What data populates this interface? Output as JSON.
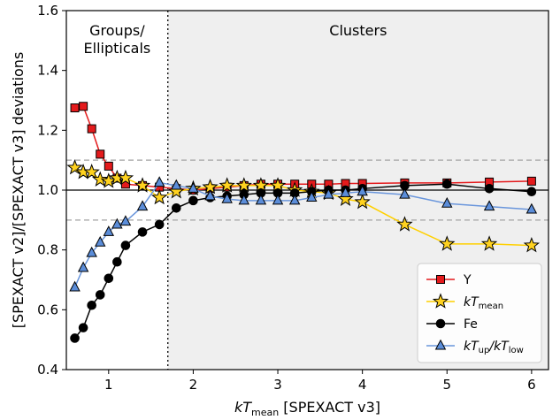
{
  "chart_data": {
    "type": "line",
    "xlabel": "kT_mean [SPEXACT v3]",
    "xlabel_parts": {
      "main": "kT",
      "sub": "mean",
      "rest": " [SPEXACT v3]"
    },
    "ylabel": "[SPEXACT v2]/[SPEXACT v3] deviations",
    "xlim": [
      0.5,
      6.2
    ],
    "ylim": [
      0.4,
      1.6
    ],
    "xticks": [
      1,
      2,
      3,
      4,
      5,
      6
    ],
    "yticks": [
      0.4,
      0.6,
      0.8,
      1.0,
      1.2,
      1.4,
      1.6
    ],
    "ytick_labels": [
      "0.4",
      "0.6",
      "0.8",
      "1.0",
      "1.2",
      "1.4",
      "1.6"
    ],
    "divider_x": 1.7,
    "reference_lines": [
      1.0
    ],
    "dashed_lines": [
      0.9,
      1.1
    ],
    "regions": [
      {
        "lines": [
          "Groups/",
          "Ellipticals"
        ],
        "shaded": false
      },
      {
        "lines": [
          "Clusters"
        ],
        "shaded": true
      }
    ],
    "legend_position": "lower-right",
    "series": [
      {
        "name": "Y",
        "legend": {
          "main": "Y"
        },
        "color": "#e41a1c",
        "fill": "#e41a1c",
        "marker": "square",
        "x": [
          0.6,
          0.7,
          0.8,
          0.9,
          1.0,
          1.1,
          1.2,
          1.4,
          1.6,
          1.8,
          2.0,
          2.2,
          2.4,
          2.6,
          2.8,
          3.0,
          3.2,
          3.4,
          3.6,
          3.8,
          4.0,
          4.5,
          5.0,
          5.5,
          6.0
        ],
        "y": [
          1.275,
          1.28,
          1.205,
          1.12,
          1.08,
          1.04,
          1.02,
          1.015,
          1.01,
          1.005,
          1.0,
          1.005,
          1.01,
          1.015,
          1.02,
          1.02,
          1.02,
          1.02,
          1.02,
          1.022,
          1.022,
          1.024,
          1.024,
          1.027,
          1.03
        ]
      },
      {
        "name": "kT_mean",
        "legend": {
          "main": "kT",
          "sub": "mean"
        },
        "color": "#ffd000",
        "fill": "#ffd21f",
        "marker": "star",
        "x": [
          0.6,
          0.7,
          0.8,
          0.9,
          1.0,
          1.1,
          1.2,
          1.4,
          1.6,
          1.8,
          2.0,
          2.2,
          2.4,
          2.6,
          2.8,
          3.0,
          3.2,
          3.4,
          3.6,
          3.8,
          4.0,
          4.5,
          5.0,
          5.5,
          6.0
        ],
        "y": [
          1.075,
          1.06,
          1.06,
          1.035,
          1.03,
          1.04,
          1.04,
          1.015,
          0.975,
          0.995,
          1.005,
          1.01,
          1.015,
          1.015,
          1.015,
          1.015,
          1.0,
          0.995,
          0.99,
          0.97,
          0.96,
          0.885,
          0.82,
          0.82,
          0.815
        ]
      },
      {
        "name": "Fe",
        "legend": {
          "main": "Fe"
        },
        "color": "#000000",
        "fill": "#000000",
        "marker": "circle",
        "x": [
          0.6,
          0.7,
          0.8,
          0.9,
          1.0,
          1.1,
          1.2,
          1.4,
          1.6,
          1.8,
          2.0,
          2.2,
          2.4,
          2.6,
          2.8,
          3.0,
          3.2,
          3.4,
          3.6,
          3.8,
          4.0,
          4.5,
          5.0,
          5.5,
          6.0
        ],
        "y": [
          0.505,
          0.54,
          0.615,
          0.65,
          0.705,
          0.76,
          0.815,
          0.86,
          0.885,
          0.94,
          0.965,
          0.975,
          0.98,
          0.985,
          0.99,
          0.99,
          0.99,
          0.995,
          1.0,
          1.0,
          1.005,
          1.015,
          1.02,
          1.005,
          0.995
        ]
      },
      {
        "name": "kT_up/kT_low",
        "legend": {
          "main": "kT",
          "sub": "up",
          "main2": "/kT",
          "sub2": "low"
        },
        "color": "#6a96dc",
        "fill": "#5b8dd9",
        "marker": "triangle",
        "x": [
          0.6,
          0.7,
          0.8,
          0.9,
          1.0,
          1.1,
          1.2,
          1.4,
          1.6,
          1.8,
          2.0,
          2.2,
          2.4,
          2.6,
          2.8,
          3.0,
          3.2,
          3.4,
          3.6,
          3.8,
          4.0,
          4.5,
          5.0,
          5.5,
          6.0
        ],
        "y": [
          0.675,
          0.74,
          0.79,
          0.825,
          0.86,
          0.885,
          0.895,
          0.945,
          1.025,
          1.015,
          1.005,
          0.98,
          0.97,
          0.965,
          0.965,
          0.965,
          0.965,
          0.975,
          0.985,
          0.99,
          0.995,
          0.985,
          0.955,
          0.945,
          0.935
        ]
      }
    ]
  }
}
